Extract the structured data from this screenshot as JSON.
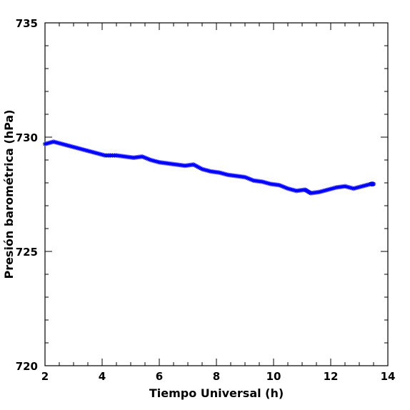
{
  "chart_data": {
    "type": "scatter",
    "xlabel": "Tiempo Universal (h)",
    "ylabel": "Presión barométrica (hPa)",
    "xlim": [
      2,
      14
    ],
    "ylim": [
      720,
      735
    ],
    "x_ticks": [
      "2",
      "4",
      "6",
      "8",
      "10",
      "12",
      "14"
    ],
    "y_ticks": [
      "720",
      "725",
      "730",
      "735"
    ],
    "marker_color": "#0000ff",
    "marker": "asterisk",
    "grid": false,
    "series": [
      {
        "points": [
          [
            2.0,
            729.7
          ],
          [
            2.3,
            729.8
          ],
          [
            2.6,
            729.7
          ],
          [
            2.9,
            729.6
          ],
          [
            3.2,
            729.5
          ],
          [
            3.5,
            729.4
          ],
          [
            3.8,
            729.3
          ],
          [
            4.1,
            729.2
          ],
          [
            4.5,
            729.2
          ],
          [
            4.8,
            729.15
          ],
          [
            5.1,
            729.1
          ],
          [
            5.4,
            729.15
          ],
          [
            5.7,
            729.0
          ],
          [
            6.0,
            728.9
          ],
          [
            6.3,
            728.85
          ],
          [
            6.6,
            728.8
          ],
          [
            6.9,
            728.75
          ],
          [
            7.2,
            728.8
          ],
          [
            7.5,
            728.6
          ],
          [
            7.8,
            728.5
          ],
          [
            8.1,
            728.45
          ],
          [
            8.4,
            728.35
          ],
          [
            8.7,
            728.3
          ],
          [
            9.0,
            728.25
          ],
          [
            9.3,
            728.1
          ],
          [
            9.6,
            728.05
          ],
          [
            9.9,
            727.95
          ],
          [
            10.2,
            727.9
          ],
          [
            10.5,
            727.75
          ],
          [
            10.8,
            727.65
          ],
          [
            11.1,
            727.7
          ],
          [
            11.3,
            727.55
          ],
          [
            11.6,
            727.6
          ],
          [
            11.9,
            727.7
          ],
          [
            12.2,
            727.8
          ],
          [
            12.5,
            727.85
          ],
          [
            12.8,
            727.75
          ],
          [
            13.1,
            727.85
          ],
          [
            13.4,
            727.95
          ],
          [
            13.5,
            727.95
          ]
        ]
      }
    ]
  }
}
